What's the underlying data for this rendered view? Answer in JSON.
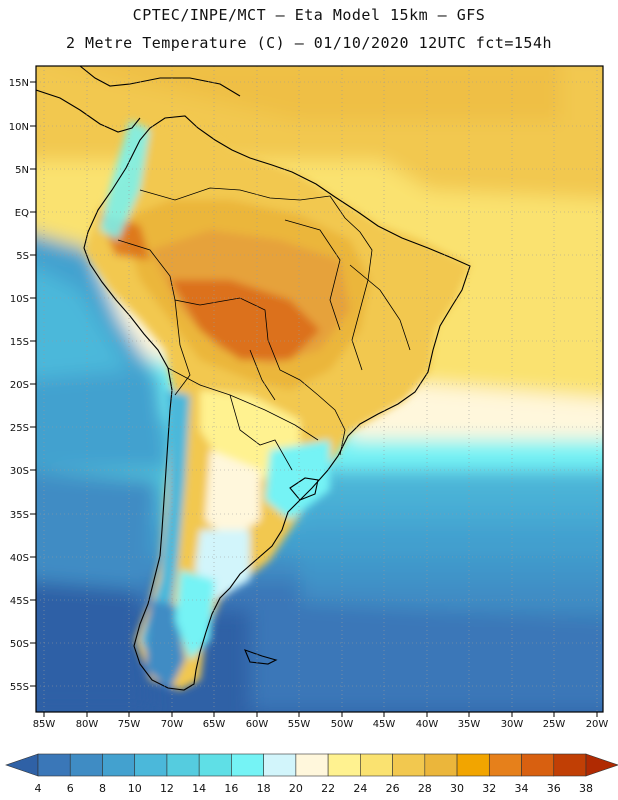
{
  "title": {
    "line1": "CPTEC/INPE/MCT –  Eta Model 15km – GFS",
    "line2": "2 Metre Temperature (C) – 01/10/2020 12UTC fct=154h"
  },
  "axes": {
    "lat_labels": [
      "15N",
      "10N",
      "5N",
      "EQ",
      "5S",
      "10S",
      "15S",
      "20S",
      "25S",
      "30S",
      "35S",
      "40S",
      "45S",
      "50S",
      "55S"
    ],
    "lon_labels": [
      "85W",
      "80W",
      "75W",
      "70W",
      "65W",
      "60W",
      "55W",
      "50W",
      "45W",
      "40W",
      "35W",
      "30W",
      "25W",
      "20W"
    ]
  },
  "colorbar": {
    "labels": [
      "4",
      "6",
      "8",
      "10",
      "12",
      "14",
      "16",
      "18",
      "20",
      "22",
      "24",
      "26",
      "28",
      "30",
      "32",
      "34",
      "36",
      "38"
    ],
    "colors": [
      "#2f61a6",
      "#3a77b8",
      "#3f8cc4",
      "#43a1cf",
      "#4bb8da",
      "#55ccdf",
      "#5fdfe6",
      "#75f3f5",
      "#d2f5fb",
      "#fff7dc",
      "#fff290",
      "#fae270",
      "#f2c84f",
      "#ebb63b",
      "#f2a500",
      "#e6801b",
      "#d86010",
      "#c13f05",
      "#b02a02"
    ]
  }
}
